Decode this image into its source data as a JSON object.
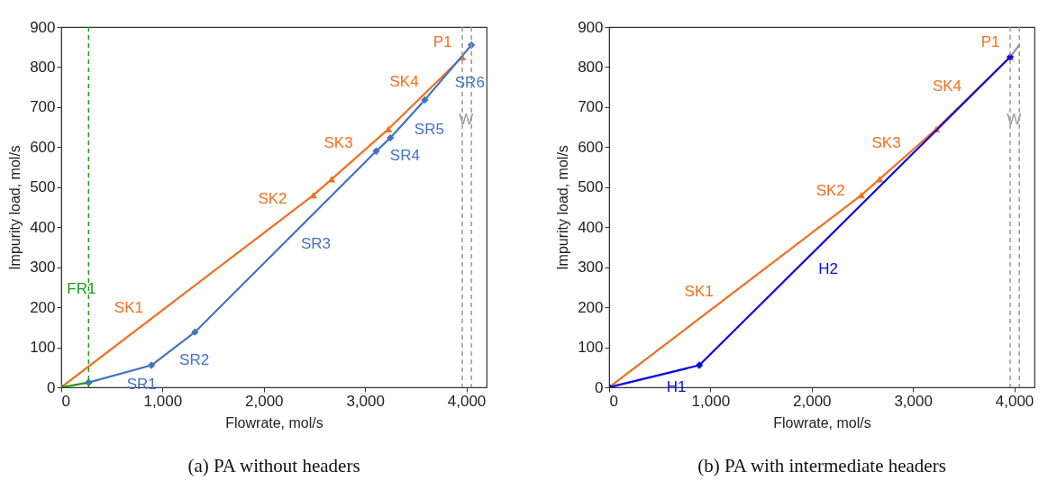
{
  "chart_data": [
    {
      "type": "line",
      "title": "(a) PA without headers",
      "xlabel": "Flowrate, mol/s",
      "ylabel": "Impurity load, mol/s",
      "xlim": [
        0,
        4200
      ],
      "ylim": [
        0,
        900
      ],
      "xticks": [
        0,
        {
          "value": 1000,
          "label": "1,000"
        },
        {
          "value": 2000,
          "label": "2,000"
        },
        {
          "value": 3000,
          "label": "3,000"
        },
        {
          "value": 4000,
          "label": "4,000"
        }
      ],
      "yticks": [
        0,
        100,
        200,
        300,
        400,
        500,
        600,
        700,
        800,
        900
      ],
      "grid": false,
      "series": [
        {
          "color": "#f07020",
          "marker": "triangle",
          "x": [
            0,
            2490,
            2670,
            3230,
            3960
          ],
          "values": [
            0,
            480,
            520,
            645,
            825
          ]
        },
        {
          "color": "#1a9a1a",
          "marker": "diamond",
          "x": [
            0,
            270
          ],
          "values": [
            0,
            12
          ]
        },
        {
          "color": "#4472c4",
          "marker": "diamond",
          "x": [
            270,
            890,
            1320,
            3110,
            3250,
            3590,
            4050
          ],
          "values": [
            12,
            55,
            138,
            590,
            623,
            718,
            855
          ]
        }
      ],
      "ref_lines": [
        {
          "axis": "x",
          "value": 270,
          "label": "FR1",
          "color": "#1a9a1a",
          "line_style": "dashed"
        },
        {
          "axis": "x",
          "value": 3960,
          "color": "#999999",
          "line_style": "dashed"
        },
        {
          "axis": "x",
          "value": 4050,
          "label": "W",
          "color": "#999999",
          "line_style": "dashed"
        }
      ],
      "annotations": [
        {
          "text": "SK1",
          "x": 880,
          "y": 170
        },
        {
          "text": "SR1",
          "x": 580,
          "y": 33
        },
        {
          "text": "SR2",
          "x": 1100,
          "y": 95
        },
        {
          "text": "SR3",
          "x": 2300,
          "y": 385
        },
        {
          "text": "SK2",
          "x": 2300,
          "y": 443
        },
        {
          "text": "SK3",
          "x": 2950,
          "y": 583
        },
        {
          "text": "SR4",
          "x": 3180,
          "y": 606
        },
        {
          "text": "SR5",
          "x": 3420,
          "y": 670
        },
        {
          "text": "SK4",
          "x": 3600,
          "y": 736
        },
        {
          "text": "SR6",
          "x": 3820,
          "y": 787
        },
        {
          "text": "P1",
          "x": 3960,
          "y": 825
        }
      ]
    },
    {
      "type": "line",
      "title": "(b) PA with intermediate headers",
      "xlabel": "Flowrate, mol/s",
      "ylabel": "Impurity load, mol/s",
      "xlim": [
        0,
        4200
      ],
      "ylim": [
        0,
        900
      ],
      "xticks": [
        0,
        {
          "value": 1000,
          "label": "1,000"
        },
        {
          "value": 2000,
          "label": "2,000"
        },
        {
          "value": 3000,
          "label": "3,000"
        },
        {
          "value": 4000,
          "label": "4,000"
        }
      ],
      "yticks": [
        0,
        100,
        200,
        300,
        400,
        500,
        600,
        700,
        800,
        900
      ],
      "grid": false,
      "series": [
        {
          "color": "#f07020",
          "marker": "triangle",
          "x": [
            0,
            2490,
            2670,
            3230,
            3960
          ],
          "values": [
            0,
            480,
            520,
            645,
            825
          ]
        },
        {
          "color": "#999999",
          "marker": "none",
          "x": [
            3960,
            4050
          ],
          "values": [
            825,
            855
          ]
        },
        {
          "color": "#0a0ae6",
          "marker": "diamond",
          "x": [
            0,
            890,
            3960
          ],
          "values": [
            0,
            55,
            825
          ]
        }
      ],
      "ref_lines": [
        {
          "axis": "x",
          "value": 3960,
          "color": "#999999",
          "line_style": "dashed"
        },
        {
          "axis": "x",
          "value": 4050,
          "label": "W",
          "color": "#999999",
          "line_style": "dashed"
        }
      ],
      "annotations": [
        {
          "text": "SK1",
          "x": 1100,
          "y": 212
        },
        {
          "text": "H1",
          "x": 450,
          "y": 28
        },
        {
          "text": "H2",
          "x": 1950,
          "y": 321
        },
        {
          "text": "SK2",
          "x": 2400,
          "y": 463
        },
        {
          "text": "SK3",
          "x": 2950,
          "y": 583
        },
        {
          "text": "SK4",
          "x": 3550,
          "y": 724
        },
        {
          "text": "P1",
          "x": 3960,
          "y": 825
        }
      ]
    }
  ]
}
